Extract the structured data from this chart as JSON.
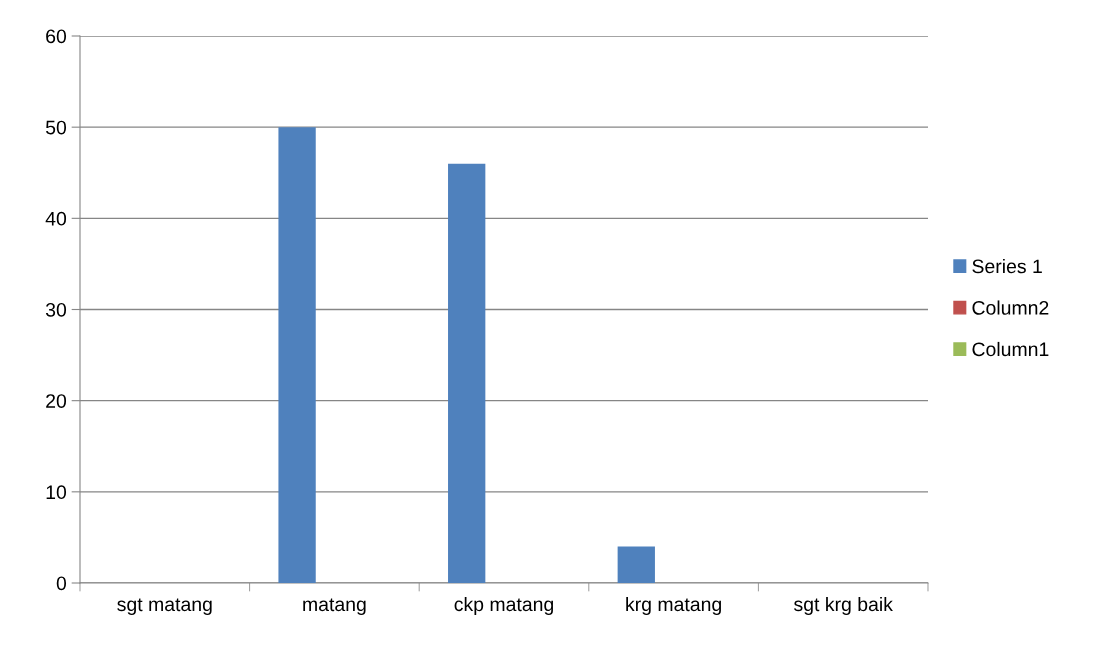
{
  "chart_data": {
    "type": "bar",
    "categories": [
      "sgt matang",
      "matang",
      "ckp matang",
      "krg matang",
      "sgt krg baik"
    ],
    "series": [
      {
        "name": "Series 1",
        "color": "#4f81bd",
        "values": [
          0,
          50,
          46,
          4,
          0
        ]
      },
      {
        "name": "Column2",
        "color": "#c0504d",
        "values": [
          null,
          null,
          null,
          null,
          null
        ]
      },
      {
        "name": "Column1",
        "color": "#9bbb59",
        "values": [
          null,
          null,
          null,
          null,
          null
        ]
      }
    ],
    "ylim": [
      0,
      60
    ],
    "yticks": [
      0,
      10,
      20,
      30,
      40,
      50,
      60
    ],
    "grid": "y",
    "legend": "right"
  }
}
